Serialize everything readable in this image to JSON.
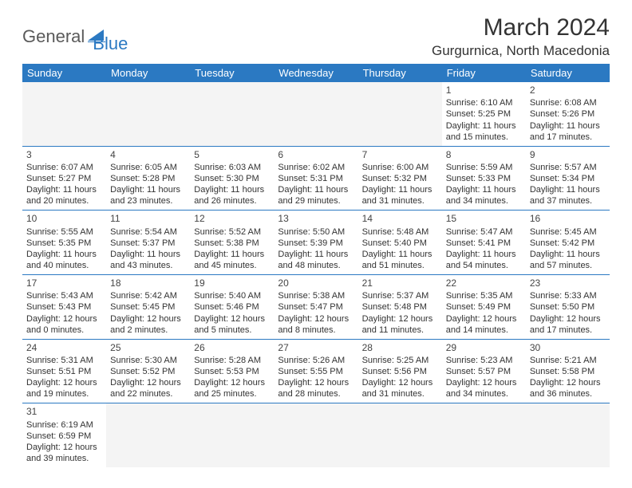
{
  "logo": {
    "part1": "General",
    "part2": "Blue"
  },
  "title": "March 2024",
  "location": "Gurgurnica, North Macedonia",
  "colors": {
    "header_bg": "#2b79c2",
    "header_text": "#ffffff",
    "border": "#2b79c2",
    "empty_bg": "#f4f4f4",
    "text": "#333333",
    "logo_gray": "#5a5a5a",
    "logo_blue": "#2b79c2"
  },
  "weekdays": [
    "Sunday",
    "Monday",
    "Tuesday",
    "Wednesday",
    "Thursday",
    "Friday",
    "Saturday"
  ],
  "weeks": [
    [
      null,
      null,
      null,
      null,
      null,
      {
        "n": "1",
        "sr": "Sunrise: 6:10 AM",
        "ss": "Sunset: 5:25 PM",
        "d1": "Daylight: 11 hours",
        "d2": "and 15 minutes."
      },
      {
        "n": "2",
        "sr": "Sunrise: 6:08 AM",
        "ss": "Sunset: 5:26 PM",
        "d1": "Daylight: 11 hours",
        "d2": "and 17 minutes."
      }
    ],
    [
      {
        "n": "3",
        "sr": "Sunrise: 6:07 AM",
        "ss": "Sunset: 5:27 PM",
        "d1": "Daylight: 11 hours",
        "d2": "and 20 minutes."
      },
      {
        "n": "4",
        "sr": "Sunrise: 6:05 AM",
        "ss": "Sunset: 5:28 PM",
        "d1": "Daylight: 11 hours",
        "d2": "and 23 minutes."
      },
      {
        "n": "5",
        "sr": "Sunrise: 6:03 AM",
        "ss": "Sunset: 5:30 PM",
        "d1": "Daylight: 11 hours",
        "d2": "and 26 minutes."
      },
      {
        "n": "6",
        "sr": "Sunrise: 6:02 AM",
        "ss": "Sunset: 5:31 PM",
        "d1": "Daylight: 11 hours",
        "d2": "and 29 minutes."
      },
      {
        "n": "7",
        "sr": "Sunrise: 6:00 AM",
        "ss": "Sunset: 5:32 PM",
        "d1": "Daylight: 11 hours",
        "d2": "and 31 minutes."
      },
      {
        "n": "8",
        "sr": "Sunrise: 5:59 AM",
        "ss": "Sunset: 5:33 PM",
        "d1": "Daylight: 11 hours",
        "d2": "and 34 minutes."
      },
      {
        "n": "9",
        "sr": "Sunrise: 5:57 AM",
        "ss": "Sunset: 5:34 PM",
        "d1": "Daylight: 11 hours",
        "d2": "and 37 minutes."
      }
    ],
    [
      {
        "n": "10",
        "sr": "Sunrise: 5:55 AM",
        "ss": "Sunset: 5:35 PM",
        "d1": "Daylight: 11 hours",
        "d2": "and 40 minutes."
      },
      {
        "n": "11",
        "sr": "Sunrise: 5:54 AM",
        "ss": "Sunset: 5:37 PM",
        "d1": "Daylight: 11 hours",
        "d2": "and 43 minutes."
      },
      {
        "n": "12",
        "sr": "Sunrise: 5:52 AM",
        "ss": "Sunset: 5:38 PM",
        "d1": "Daylight: 11 hours",
        "d2": "and 45 minutes."
      },
      {
        "n": "13",
        "sr": "Sunrise: 5:50 AM",
        "ss": "Sunset: 5:39 PM",
        "d1": "Daylight: 11 hours",
        "d2": "and 48 minutes."
      },
      {
        "n": "14",
        "sr": "Sunrise: 5:48 AM",
        "ss": "Sunset: 5:40 PM",
        "d1": "Daylight: 11 hours",
        "d2": "and 51 minutes."
      },
      {
        "n": "15",
        "sr": "Sunrise: 5:47 AM",
        "ss": "Sunset: 5:41 PM",
        "d1": "Daylight: 11 hours",
        "d2": "and 54 minutes."
      },
      {
        "n": "16",
        "sr": "Sunrise: 5:45 AM",
        "ss": "Sunset: 5:42 PM",
        "d1": "Daylight: 11 hours",
        "d2": "and 57 minutes."
      }
    ],
    [
      {
        "n": "17",
        "sr": "Sunrise: 5:43 AM",
        "ss": "Sunset: 5:43 PM",
        "d1": "Daylight: 12 hours",
        "d2": "and 0 minutes."
      },
      {
        "n": "18",
        "sr": "Sunrise: 5:42 AM",
        "ss": "Sunset: 5:45 PM",
        "d1": "Daylight: 12 hours",
        "d2": "and 2 minutes."
      },
      {
        "n": "19",
        "sr": "Sunrise: 5:40 AM",
        "ss": "Sunset: 5:46 PM",
        "d1": "Daylight: 12 hours",
        "d2": "and 5 minutes."
      },
      {
        "n": "20",
        "sr": "Sunrise: 5:38 AM",
        "ss": "Sunset: 5:47 PM",
        "d1": "Daylight: 12 hours",
        "d2": "and 8 minutes."
      },
      {
        "n": "21",
        "sr": "Sunrise: 5:37 AM",
        "ss": "Sunset: 5:48 PM",
        "d1": "Daylight: 12 hours",
        "d2": "and 11 minutes."
      },
      {
        "n": "22",
        "sr": "Sunrise: 5:35 AM",
        "ss": "Sunset: 5:49 PM",
        "d1": "Daylight: 12 hours",
        "d2": "and 14 minutes."
      },
      {
        "n": "23",
        "sr": "Sunrise: 5:33 AM",
        "ss": "Sunset: 5:50 PM",
        "d1": "Daylight: 12 hours",
        "d2": "and 17 minutes."
      }
    ],
    [
      {
        "n": "24",
        "sr": "Sunrise: 5:31 AM",
        "ss": "Sunset: 5:51 PM",
        "d1": "Daylight: 12 hours",
        "d2": "and 19 minutes."
      },
      {
        "n": "25",
        "sr": "Sunrise: 5:30 AM",
        "ss": "Sunset: 5:52 PM",
        "d1": "Daylight: 12 hours",
        "d2": "and 22 minutes."
      },
      {
        "n": "26",
        "sr": "Sunrise: 5:28 AM",
        "ss": "Sunset: 5:53 PM",
        "d1": "Daylight: 12 hours",
        "d2": "and 25 minutes."
      },
      {
        "n": "27",
        "sr": "Sunrise: 5:26 AM",
        "ss": "Sunset: 5:55 PM",
        "d1": "Daylight: 12 hours",
        "d2": "and 28 minutes."
      },
      {
        "n": "28",
        "sr": "Sunrise: 5:25 AM",
        "ss": "Sunset: 5:56 PM",
        "d1": "Daylight: 12 hours",
        "d2": "and 31 minutes."
      },
      {
        "n": "29",
        "sr": "Sunrise: 5:23 AM",
        "ss": "Sunset: 5:57 PM",
        "d1": "Daylight: 12 hours",
        "d2": "and 34 minutes."
      },
      {
        "n": "30",
        "sr": "Sunrise: 5:21 AM",
        "ss": "Sunset: 5:58 PM",
        "d1": "Daylight: 12 hours",
        "d2": "and 36 minutes."
      }
    ],
    [
      {
        "n": "31",
        "sr": "Sunrise: 6:19 AM",
        "ss": "Sunset: 6:59 PM",
        "d1": "Daylight: 12 hours",
        "d2": "and 39 minutes."
      },
      null,
      null,
      null,
      null,
      null,
      null
    ]
  ]
}
